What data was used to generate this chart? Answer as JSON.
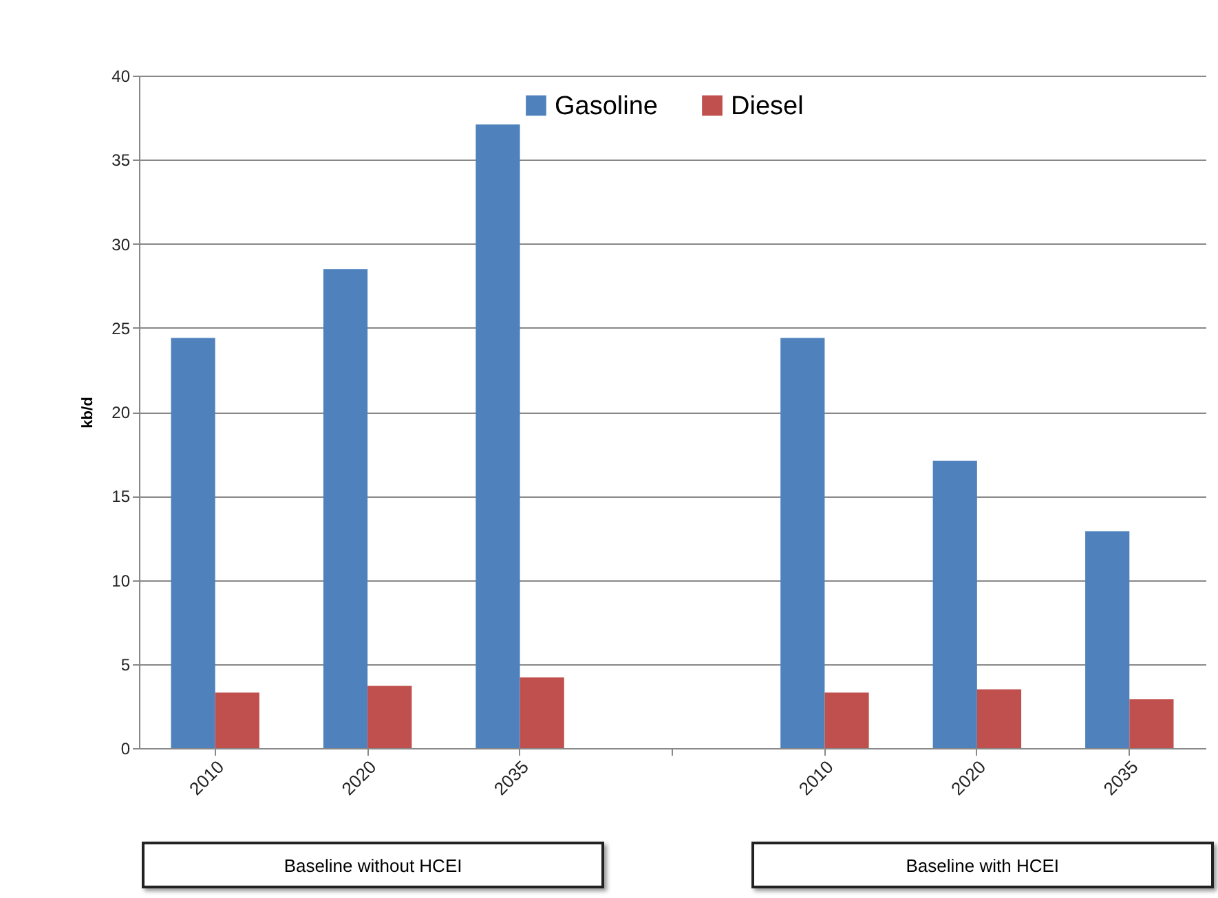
{
  "chart_data": {
    "type": "bar",
    "ylabel": "kb/d",
    "categories": [
      "2010",
      "2020",
      "2035",
      null,
      "2010",
      "2020",
      "2035"
    ],
    "series": [
      {
        "name": "Gasoline",
        "color": "#4f81bd",
        "values": [
          24.4,
          28.5,
          37.1,
          null,
          24.4,
          17.1,
          12.9
        ]
      },
      {
        "name": "Diesel",
        "color": "#c0504d",
        "values": [
          3.3,
          3.7,
          4.2,
          null,
          3.3,
          3.5,
          2.9
        ]
      }
    ],
    "ylim": [
      0,
      40
    ],
    "yticks": [
      0,
      5,
      10,
      15,
      20,
      25,
      30,
      35,
      40
    ],
    "grid": "y",
    "legend": "top",
    "annotations": [
      "Baseline without HCEI",
      "Baseline with HCEI"
    ]
  }
}
